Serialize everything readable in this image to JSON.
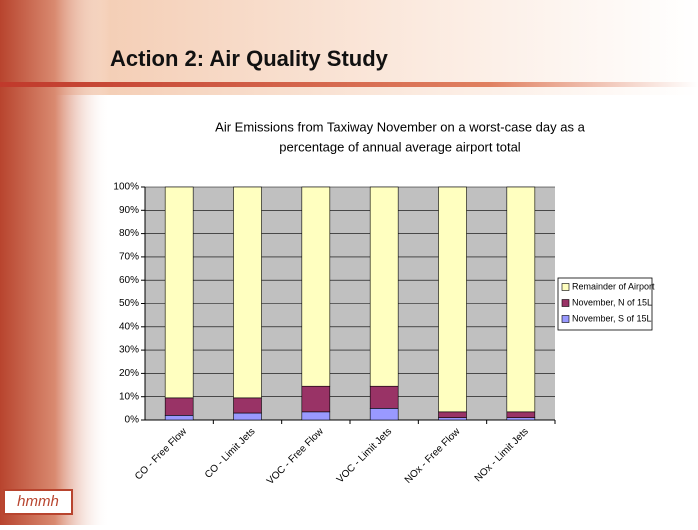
{
  "slide_title": "Action 2: Air Quality Study",
  "logo": "hmmh",
  "chart_data": {
    "type": "stacked_bar",
    "title": [
      "Air Emissions from Taxiway November on a worst-case day as a",
      "percentage of annual average airport total"
    ],
    "categories": [
      "CO - Free Flow",
      "CO - Limit Jets",
      "VOC - Free Flow",
      "VOC - Limit Jets",
      "NOx - Free Flow",
      "NOx - Limit Jets"
    ],
    "series": [
      {
        "name": "November, S of 15L",
        "color": "#9999ff",
        "values": [
          2,
          3,
          3.5,
          5,
          1,
          1
        ]
      },
      {
        "name": "November, N of 15L",
        "color": "#993366",
        "values": [
          7.5,
          6.5,
          11,
          9.5,
          2.5,
          2.5
        ]
      },
      {
        "name": "Remainder of Airport",
        "color": "#ffffc0",
        "values": [
          90.5,
          90.5,
          85.5,
          85.5,
          96.5,
          96.5
        ]
      }
    ],
    "ylim": [
      0,
      100
    ],
    "yticks": [
      {
        "value": 0,
        "label": "0%"
      },
      {
        "value": 10,
        "label": "10%"
      },
      {
        "value": 20,
        "label": "20%"
      },
      {
        "value": 30,
        "label": "30%"
      },
      {
        "value": 40,
        "label": "40%"
      },
      {
        "value": 50,
        "label": "50%"
      },
      {
        "value": 60,
        "label": "60%"
      },
      {
        "value": 70,
        "label": "70%"
      },
      {
        "value": 80,
        "label": "80%"
      },
      {
        "value": 90,
        "label": "90%"
      },
      {
        "value": 100,
        "label": "100%"
      }
    ],
    "grid": true,
    "legend": "right"
  }
}
